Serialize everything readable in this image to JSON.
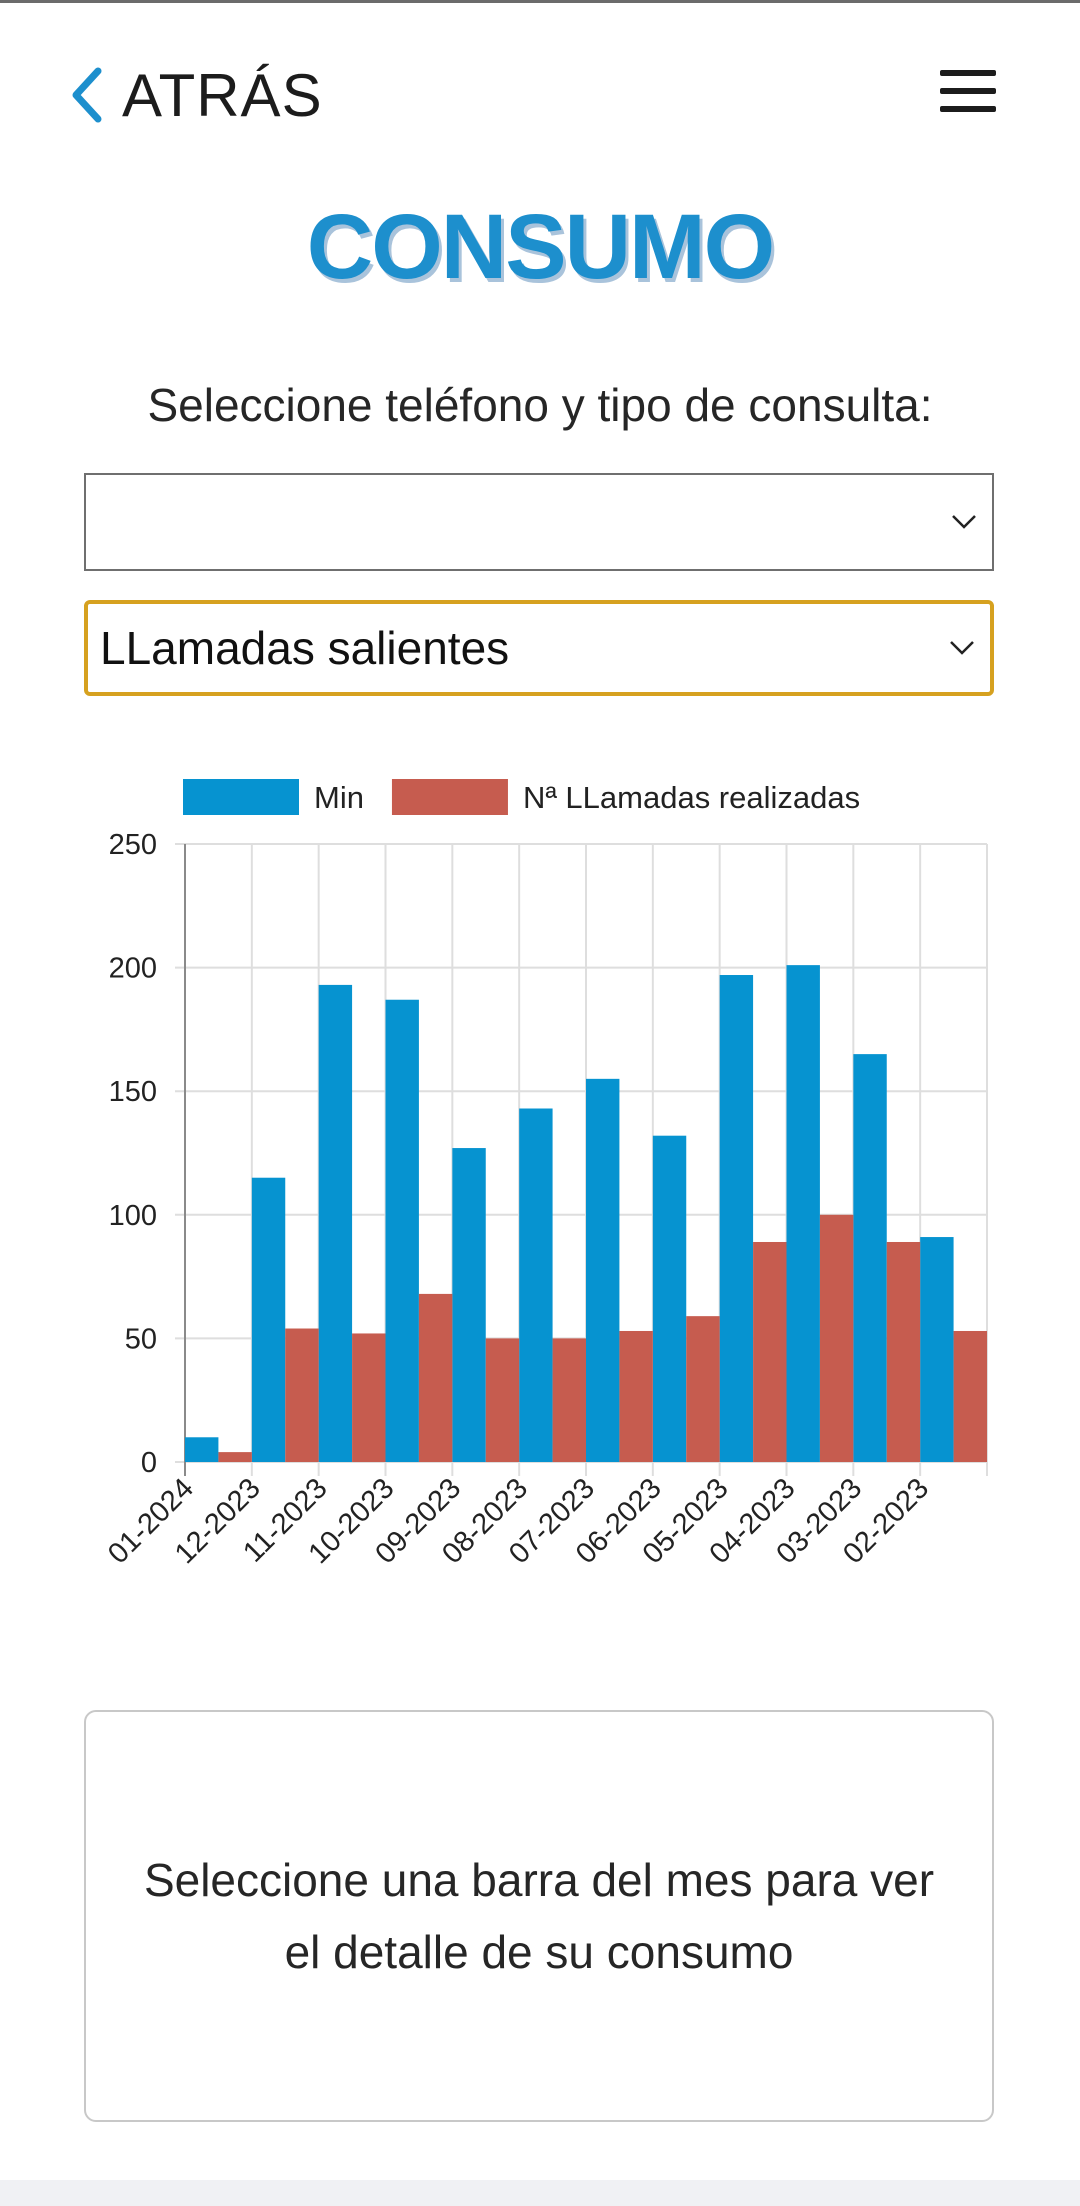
{
  "header": {
    "back_label": "ATRÁS",
    "back_icon": "chevron-left-icon",
    "menu_icon": "hamburger-menu-icon"
  },
  "page": {
    "title": "CONSUMO",
    "prompt": "Seleccione teléfono y tipo de consulta:"
  },
  "selectors": {
    "phone_value": "",
    "query_type_value": "LLamadas salientes"
  },
  "colors": {
    "accent": "#1d8fcd",
    "min_series": "#0693d0",
    "calls_series": "#c65c4f",
    "focus_border": "#d6a11f"
  },
  "chart_data": {
    "type": "bar",
    "categories": [
      "01-2024",
      "12-2023",
      "11-2023",
      "10-2023",
      "09-2023",
      "08-2023",
      "07-2023",
      "06-2023",
      "05-2023",
      "04-2023",
      "03-2023",
      "02-2023"
    ],
    "series": [
      {
        "name": "Min",
        "values": [
          10,
          115,
          193,
          187,
          127,
          143,
          155,
          132,
          197,
          201,
          165,
          91
        ]
      },
      {
        "name": "Nª LLamadas realizadas",
        "values": [
          4,
          54,
          52,
          68,
          50,
          50,
          53,
          59,
          89,
          100,
          89,
          53
        ]
      }
    ],
    "ylim": [
      0,
      250
    ],
    "yticks": [
      0,
      50,
      100,
      150,
      200,
      250
    ],
    "grid": true,
    "legend": "top"
  },
  "detail": {
    "message": "Seleccione una barra del mes para ver el detalle de su consumo"
  }
}
